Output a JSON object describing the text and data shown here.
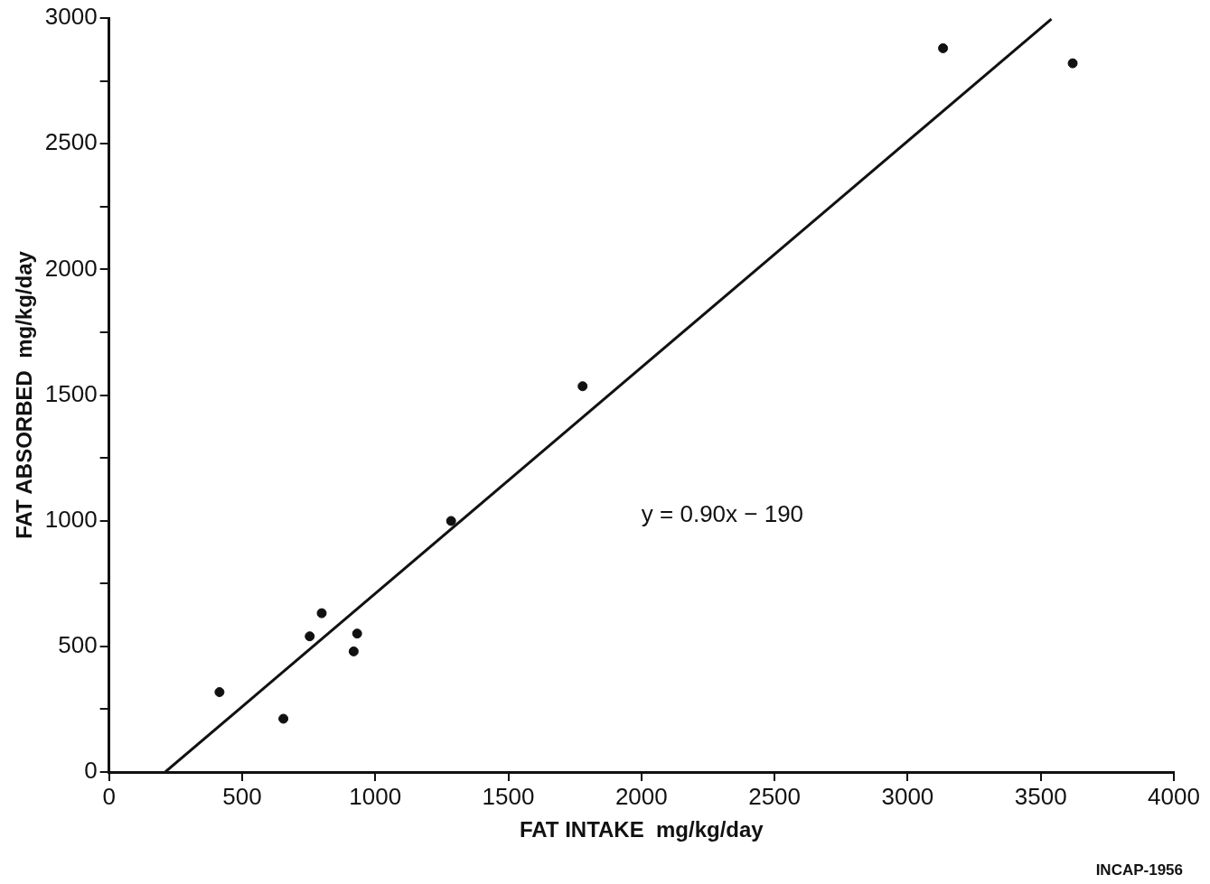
{
  "chart_data": {
    "type": "scatter",
    "xlabel": "FAT INTAKE  mg/kg/day",
    "ylabel": "FAT ABSORBED  mg/kg/day",
    "xlim": [
      0,
      4000
    ],
    "xticks": [
      0,
      500,
      1000,
      1500,
      2000,
      2500,
      3000,
      3500,
      4000
    ],
    "ylim": [
      0,
      3000
    ],
    "yticks": [
      0,
      {
        "value": 250,
        "label": null
      },
      500,
      {
        "value": 750,
        "label": null
      },
      1000,
      {
        "value": 1250,
        "label": null
      },
      1500,
      {
        "value": 1750,
        "label": null
      },
      2000,
      {
        "value": 2250,
        "label": null
      },
      2500,
      {
        "value": 2750,
        "label": null
      },
      3000
    ],
    "grid": false,
    "legend": false,
    "series": [
      {
        "marker": "circle",
        "color": "#111111",
        "x": [
          415,
          655,
          754,
          799,
          919,
          932,
          1285,
          1779,
          3133,
          3620
        ],
        "values": [
          318,
          212,
          540,
          632,
          480,
          551,
          999,
          1535,
          2880,
          2820
        ]
      },
      {
        "type": "line",
        "marker": "none",
        "color": "#111111",
        "x": [
          212,
          3540
        ],
        "values": [
          1,
          2996
        ]
      }
    ],
    "annotations": [
      "y = 0.90x − 190",
      "INCAP-1956"
    ]
  }
}
